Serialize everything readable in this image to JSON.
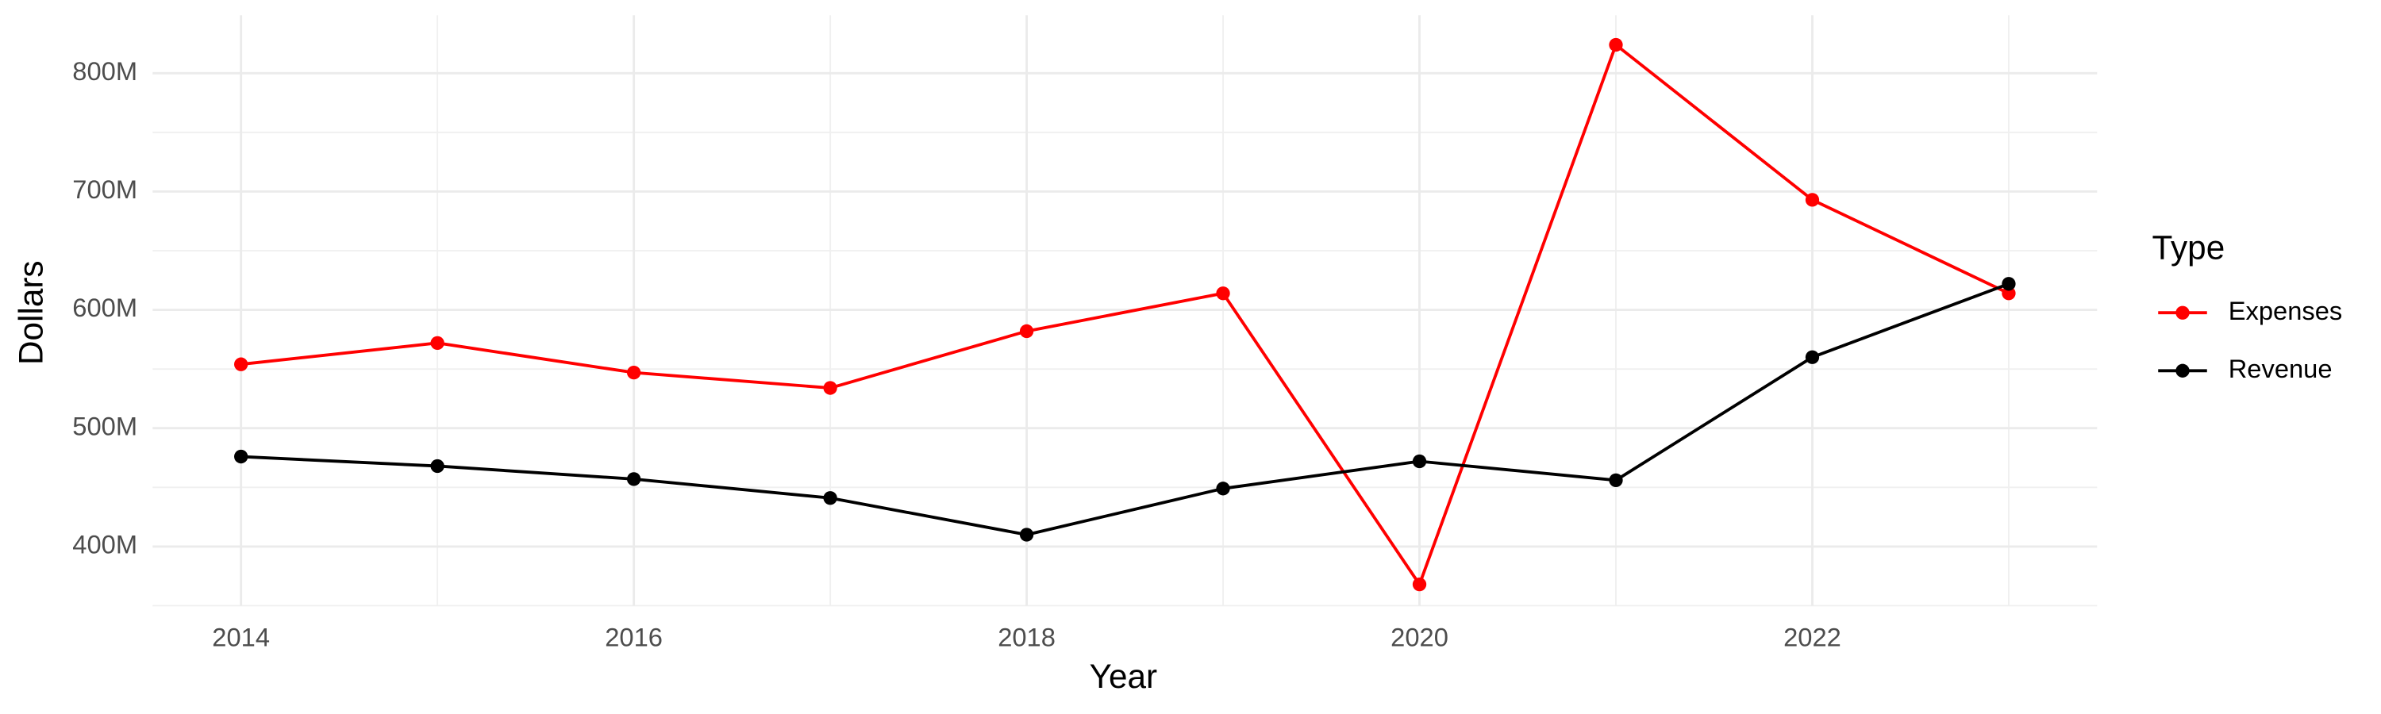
{
  "chart_data": {
    "type": "line",
    "x_label": "Year",
    "y_label": "Dollars",
    "x": [
      2014,
      2015,
      2016,
      2017,
      2018,
      2019,
      2020,
      2021,
      2022,
      2023
    ],
    "series": [
      {
        "name": "Expenses",
        "color": "#ff0000",
        "values": [
          554000000,
          572000000,
          547000000,
          534000000,
          582000000,
          614000000,
          368000000,
          824000000,
          693000000,
          614000000
        ]
      },
      {
        "name": "Revenue",
        "color": "#000000",
        "values": [
          476000000,
          468000000,
          457000000,
          441000000,
          410000000,
          449000000,
          472000000,
          456000000,
          560000000,
          622000000
        ]
      }
    ],
    "xlim": [
      2013.55,
      2023.45
    ],
    "xticks": [
      2014,
      2016,
      2018,
      2020,
      2022
    ],
    "ylim": [
      350000000,
      849000000
    ],
    "yticks": [
      {
        "value": 400000000,
        "label": "400M"
      },
      {
        "value": 500000000,
        "label": "500M"
      },
      {
        "value": 600000000,
        "label": "600M"
      },
      {
        "value": 700000000,
        "label": "700M"
      },
      {
        "value": 800000000,
        "label": "800M"
      }
    ],
    "grid": true,
    "legend_title": "Type",
    "legend_position": "right"
  }
}
